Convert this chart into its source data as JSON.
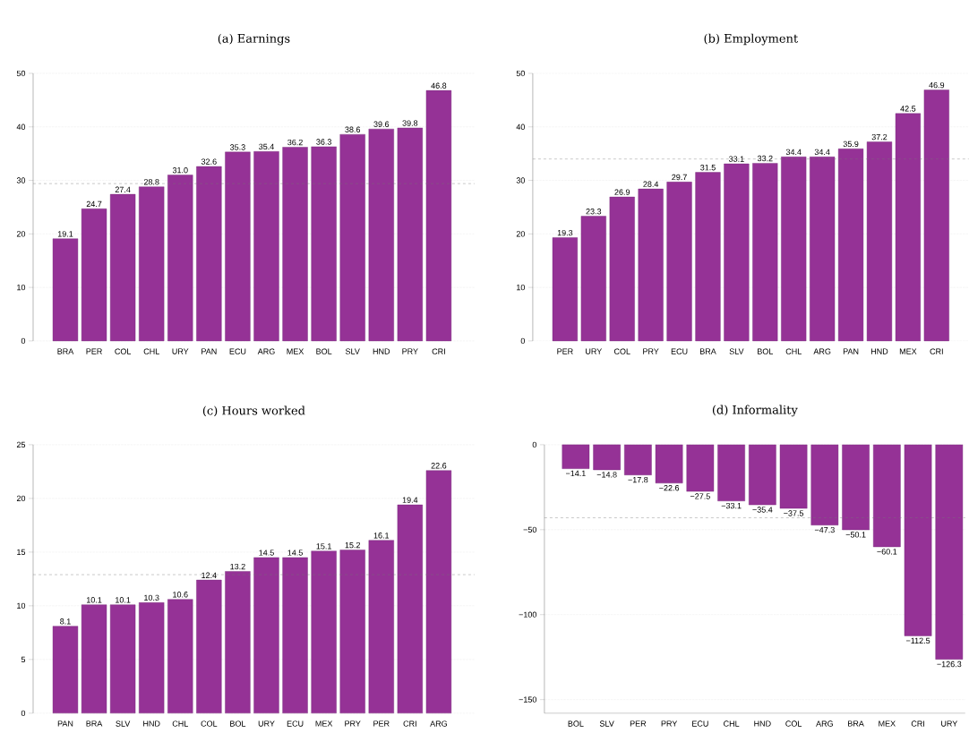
{
  "chart_data": [
    {
      "type": "bar",
      "title": "(a) Earnings",
      "categories": [
        "BRA",
        "PER",
        "COL",
        "CHL",
        "URY",
        "PAN",
        "ECU",
        "ARG",
        "MEX",
        "BOL",
        "SLV",
        "HND",
        "PRY",
        "CRI"
      ],
      "values": [
        19.1,
        24.7,
        27.4,
        28.8,
        31.0,
        32.6,
        35.3,
        35.4,
        36.2,
        36.3,
        38.6,
        39.6,
        39.8,
        46.8
      ],
      "value_labels": [
        "19.1",
        "24.7",
        "27.4",
        "28.8",
        "31.0",
        "32.6",
        "35.3",
        "35.4",
        "36.2",
        "36.3",
        "38.6",
        "39.6",
        "39.8",
        "46.8"
      ],
      "color": "#953296",
      "ylim": [
        0,
        50
      ],
      "yticks": [
        0,
        10,
        20,
        30,
        40,
        50
      ],
      "grid": "y",
      "ref_lines": [
        {
          "axis": "y",
          "value": 29.4,
          "color": "#777777",
          "line_style": "dashed"
        }
      ]
    },
    {
      "type": "bar",
      "title": "(b) Employment",
      "categories": [
        "PER",
        "URY",
        "COL",
        "PRY",
        "ECU",
        "BRA",
        "SLV",
        "BOL",
        "CHL",
        "ARG",
        "PAN",
        "HND",
        "MEX",
        "CRI"
      ],
      "values": [
        19.3,
        23.3,
        26.9,
        28.4,
        29.7,
        31.5,
        33.1,
        33.2,
        34.4,
        34.4,
        35.9,
        37.2,
        42.5,
        46.9
      ],
      "value_labels": [
        "19.3",
        "23.3",
        "26.9",
        "28.4",
        "29.7",
        "31.5",
        "33.1",
        "33.2",
        "34.4",
        "34.4",
        "35.9",
        "37.2",
        "42.5",
        "46.9"
      ],
      "color": "#953296",
      "ylim": [
        0,
        50
      ],
      "yticks": [
        0,
        10,
        20,
        30,
        40,
        50
      ],
      "grid": "y",
      "ref_lines": [
        {
          "axis": "y",
          "value": 34.0,
          "color": "#777777",
          "line_style": "dashed"
        }
      ]
    },
    {
      "type": "bar",
      "title": "(c) Hours worked",
      "categories": [
        "PAN",
        "BRA",
        "SLV",
        "HND",
        "CHL",
        "COL",
        "BOL",
        "URY",
        "ECU",
        "MEX",
        "PRY",
        "PER",
        "CRI",
        "ARG"
      ],
      "values": [
        8.1,
        10.1,
        10.1,
        10.3,
        10.6,
        12.4,
        13.2,
        14.5,
        14.5,
        15.1,
        15.2,
        16.1,
        19.4,
        22.6
      ],
      "value_labels": [
        "8.1",
        "10.1",
        "10.1",
        "10.3",
        "10.6",
        "12.4",
        "13.2",
        "14.5",
        "14.5",
        "15.1",
        "15.2",
        "16.1",
        "19.4",
        "22.6"
      ],
      "color": "#953296",
      "ylim": [
        0,
        25
      ],
      "yticks": [
        0,
        5,
        10,
        15,
        20,
        25
      ],
      "grid": "y",
      "ref_lines": [
        {
          "axis": "y",
          "value": 12.9,
          "color": "#777777",
          "line_style": "dashed"
        }
      ]
    },
    {
      "type": "bar",
      "title": "(d) Informality",
      "categories": [
        "BOL",
        "SLV",
        "PER",
        "PRY",
        "ECU",
        "CHL",
        "HND",
        "COL",
        "ARG",
        "BRA",
        "MEX",
        "CRI",
        "URY"
      ],
      "values": [
        -14.1,
        -14.8,
        -17.8,
        -22.6,
        -27.5,
        -33.1,
        -35.4,
        -37.5,
        -47.3,
        -50.1,
        -60.1,
        -112.5,
        -126.3
      ],
      "value_labels": [
        "−14.1",
        "−14.8",
        "−17.8",
        "−22.6",
        "−27.5",
        "−33.1",
        "−35.4",
        "−37.5",
        "−47.3",
        "−50.1",
        "−60.1",
        "−112.5",
        "−126.3"
      ],
      "color": "#953296",
      "ylim": [
        -158,
        0
      ],
      "yticks": [
        {
          "value": -150,
          "label": "−150"
        },
        {
          "value": -100,
          "label": "−100"
        },
        {
          "value": -50,
          "label": "−50"
        },
        0
      ],
      "grid": "y",
      "ref_lines": [
        {
          "axis": "y",
          "value": -43,
          "color": "#777777",
          "line_style": "dashed"
        }
      ]
    }
  ]
}
